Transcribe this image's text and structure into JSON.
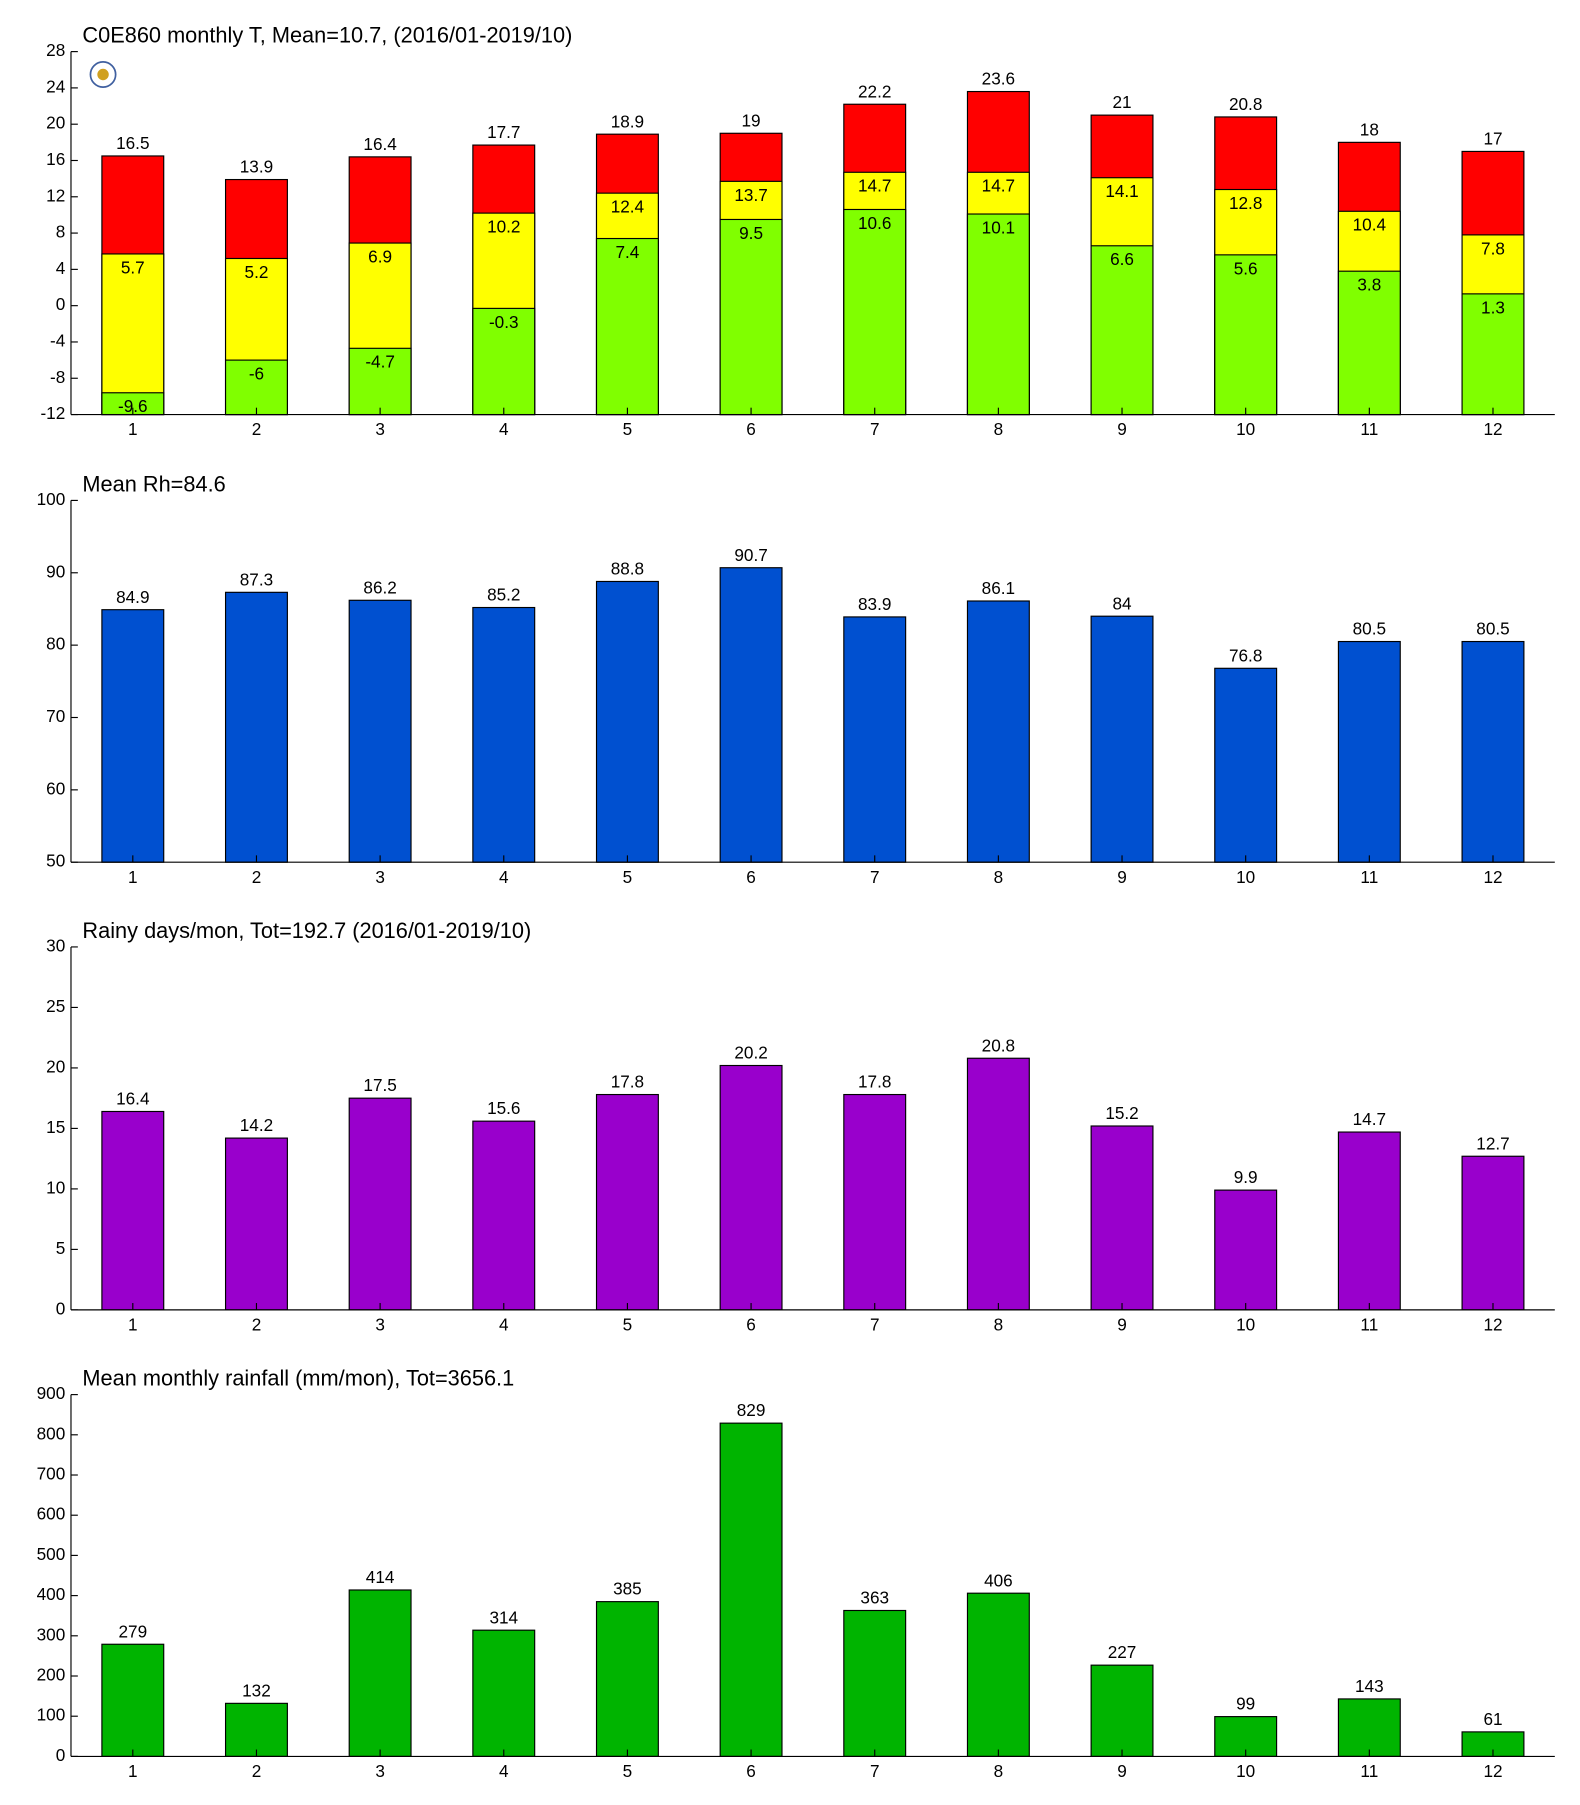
{
  "chart_data": [
    {
      "type": "bar",
      "barmode": "overlay",
      "title": "C0E860 monthly T, Mean=10.7, (2016/01-2019/10)",
      "categories": [
        "1",
        "2",
        "3",
        "4",
        "5",
        "6",
        "7",
        "8",
        "9",
        "10",
        "11",
        "12"
      ],
      "series": [
        {
          "color": "#ff0000",
          "values": [
            16.5,
            13.9,
            16.4,
            17.7,
            18.9,
            19,
            22.2,
            23.6,
            21,
            20.8,
            18,
            17
          ]
        },
        {
          "color": "#ffff00",
          "values": [
            5.7,
            5.2,
            6.9,
            10.2,
            12.4,
            13.7,
            14.7,
            14.7,
            14.1,
            12.8,
            10.4,
            7.8
          ]
        },
        {
          "color": "#80ff00",
          "values": [
            -9.6,
            -6,
            -4.7,
            -0.3,
            7.4,
            9.5,
            10.6,
            10.1,
            6.6,
            5.6,
            3.8,
            1.3
          ]
        }
      ],
      "ylim": [
        -12,
        28
      ],
      "yticks": [
        -12,
        -8,
        -4,
        0,
        4,
        8,
        12,
        16,
        20,
        24,
        28
      ]
    },
    {
      "type": "bar",
      "title": "Mean Rh=84.6",
      "categories": [
        "1",
        "2",
        "3",
        "4",
        "5",
        "6",
        "7",
        "8",
        "9",
        "10",
        "11",
        "12"
      ],
      "series": [
        {
          "color": "#0050d0",
          "values": [
            84.9,
            87.3,
            86.2,
            85.2,
            88.8,
            90.7,
            83.9,
            86.1,
            84,
            76.8,
            80.5,
            80.5
          ]
        }
      ],
      "ylim": [
        50,
        100
      ],
      "yticks": [
        50,
        60,
        70,
        80,
        90,
        100
      ]
    },
    {
      "type": "bar",
      "title": "Rainy days/mon, Tot=192.7 (2016/01-2019/10)",
      "categories": [
        "1",
        "2",
        "3",
        "4",
        "5",
        "6",
        "7",
        "8",
        "9",
        "10",
        "11",
        "12"
      ],
      "series": [
        {
          "color": "#9900cc",
          "values": [
            16.4,
            14.2,
            17.5,
            15.6,
            17.8,
            20.2,
            17.8,
            20.8,
            15.2,
            9.9,
            14.7,
            12.7
          ]
        }
      ],
      "ylim": [
        0,
        30
      ],
      "yticks": [
        0,
        5,
        10,
        15,
        20,
        25,
        30
      ]
    },
    {
      "type": "bar",
      "title": "Mean monthly rainfall (mm/mon), Tot=3656.1",
      "categories": [
        "1",
        "2",
        "3",
        "4",
        "5",
        "6",
        "7",
        "8",
        "9",
        "10",
        "11",
        "12"
      ],
      "series": [
        {
          "color": "#00b400",
          "values": [
            279,
            132,
            414,
            314,
            385,
            829,
            363,
            406,
            227,
            99,
            143,
            61
          ]
        }
      ],
      "ylim": [
        0,
        900
      ],
      "yticks": [
        0,
        100,
        200,
        300,
        400,
        500,
        600,
        700,
        800,
        900
      ]
    }
  ]
}
